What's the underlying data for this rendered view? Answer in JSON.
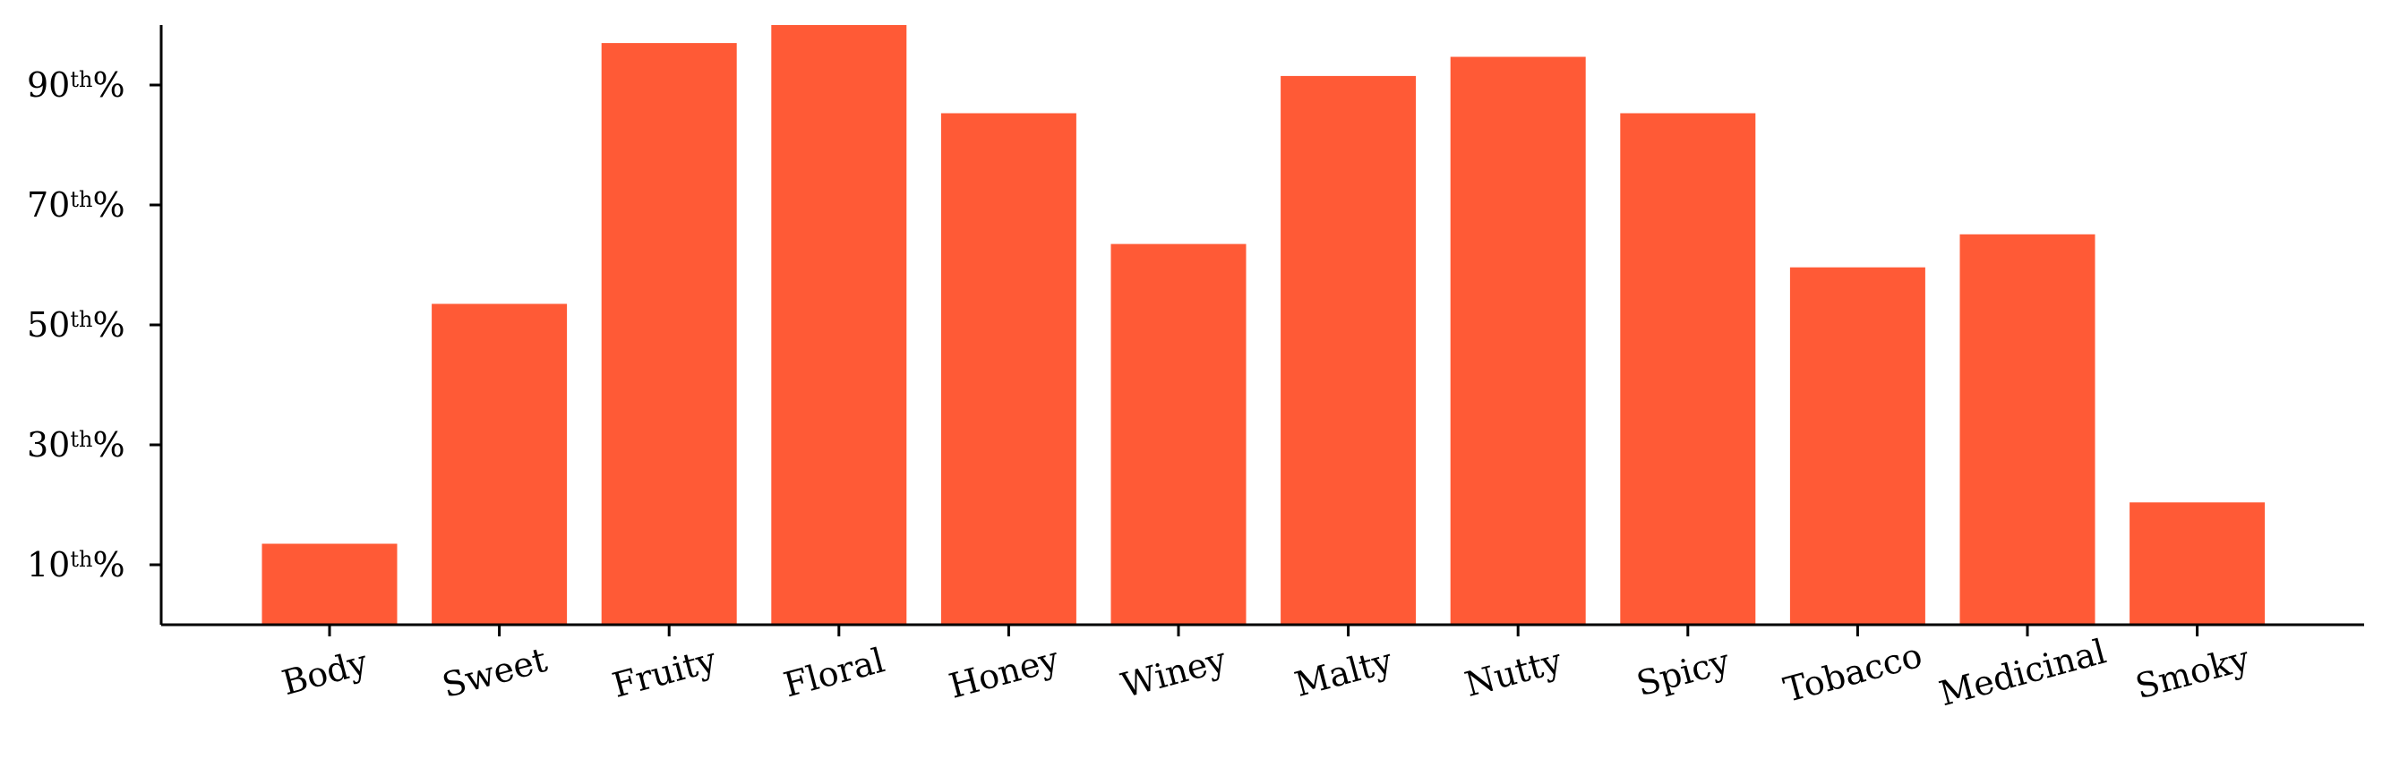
{
  "chart_data": {
    "type": "bar",
    "title": "",
    "xlabel": "",
    "ylabel": "",
    "categories": [
      "Body",
      "Sweet",
      "Fruity",
      "Floral",
      "Honey",
      "Winey",
      "Malty",
      "Nutty",
      "Spicy",
      "Tobacco",
      "Medicinal",
      "Smoky"
    ],
    "values": [
      0.135,
      0.535,
      0.97,
      1.0,
      0.853,
      0.635,
      0.915,
      0.947,
      0.853,
      0.596,
      0.651,
      0.204
    ],
    "ylim": [
      0,
      1.0
    ],
    "yticks": [
      {
        "value": 0.1,
        "number": "10",
        "suffix": "th",
        "percent": "%"
      },
      {
        "value": 0.3,
        "number": "30",
        "suffix": "th",
        "percent": "%"
      },
      {
        "value": 0.5,
        "number": "50",
        "suffix": "th",
        "percent": "%"
      },
      {
        "value": 0.7,
        "number": "70",
        "suffix": "th",
        "percent": "%"
      },
      {
        "value": 0.9,
        "number": "90",
        "suffix": "th",
        "percent": "%"
      }
    ],
    "bar_color": "#ff5a36",
    "axis_color": "#000000",
    "grid": false,
    "xtick_rotation": "slanted",
    "spines": "left and bottom only"
  }
}
